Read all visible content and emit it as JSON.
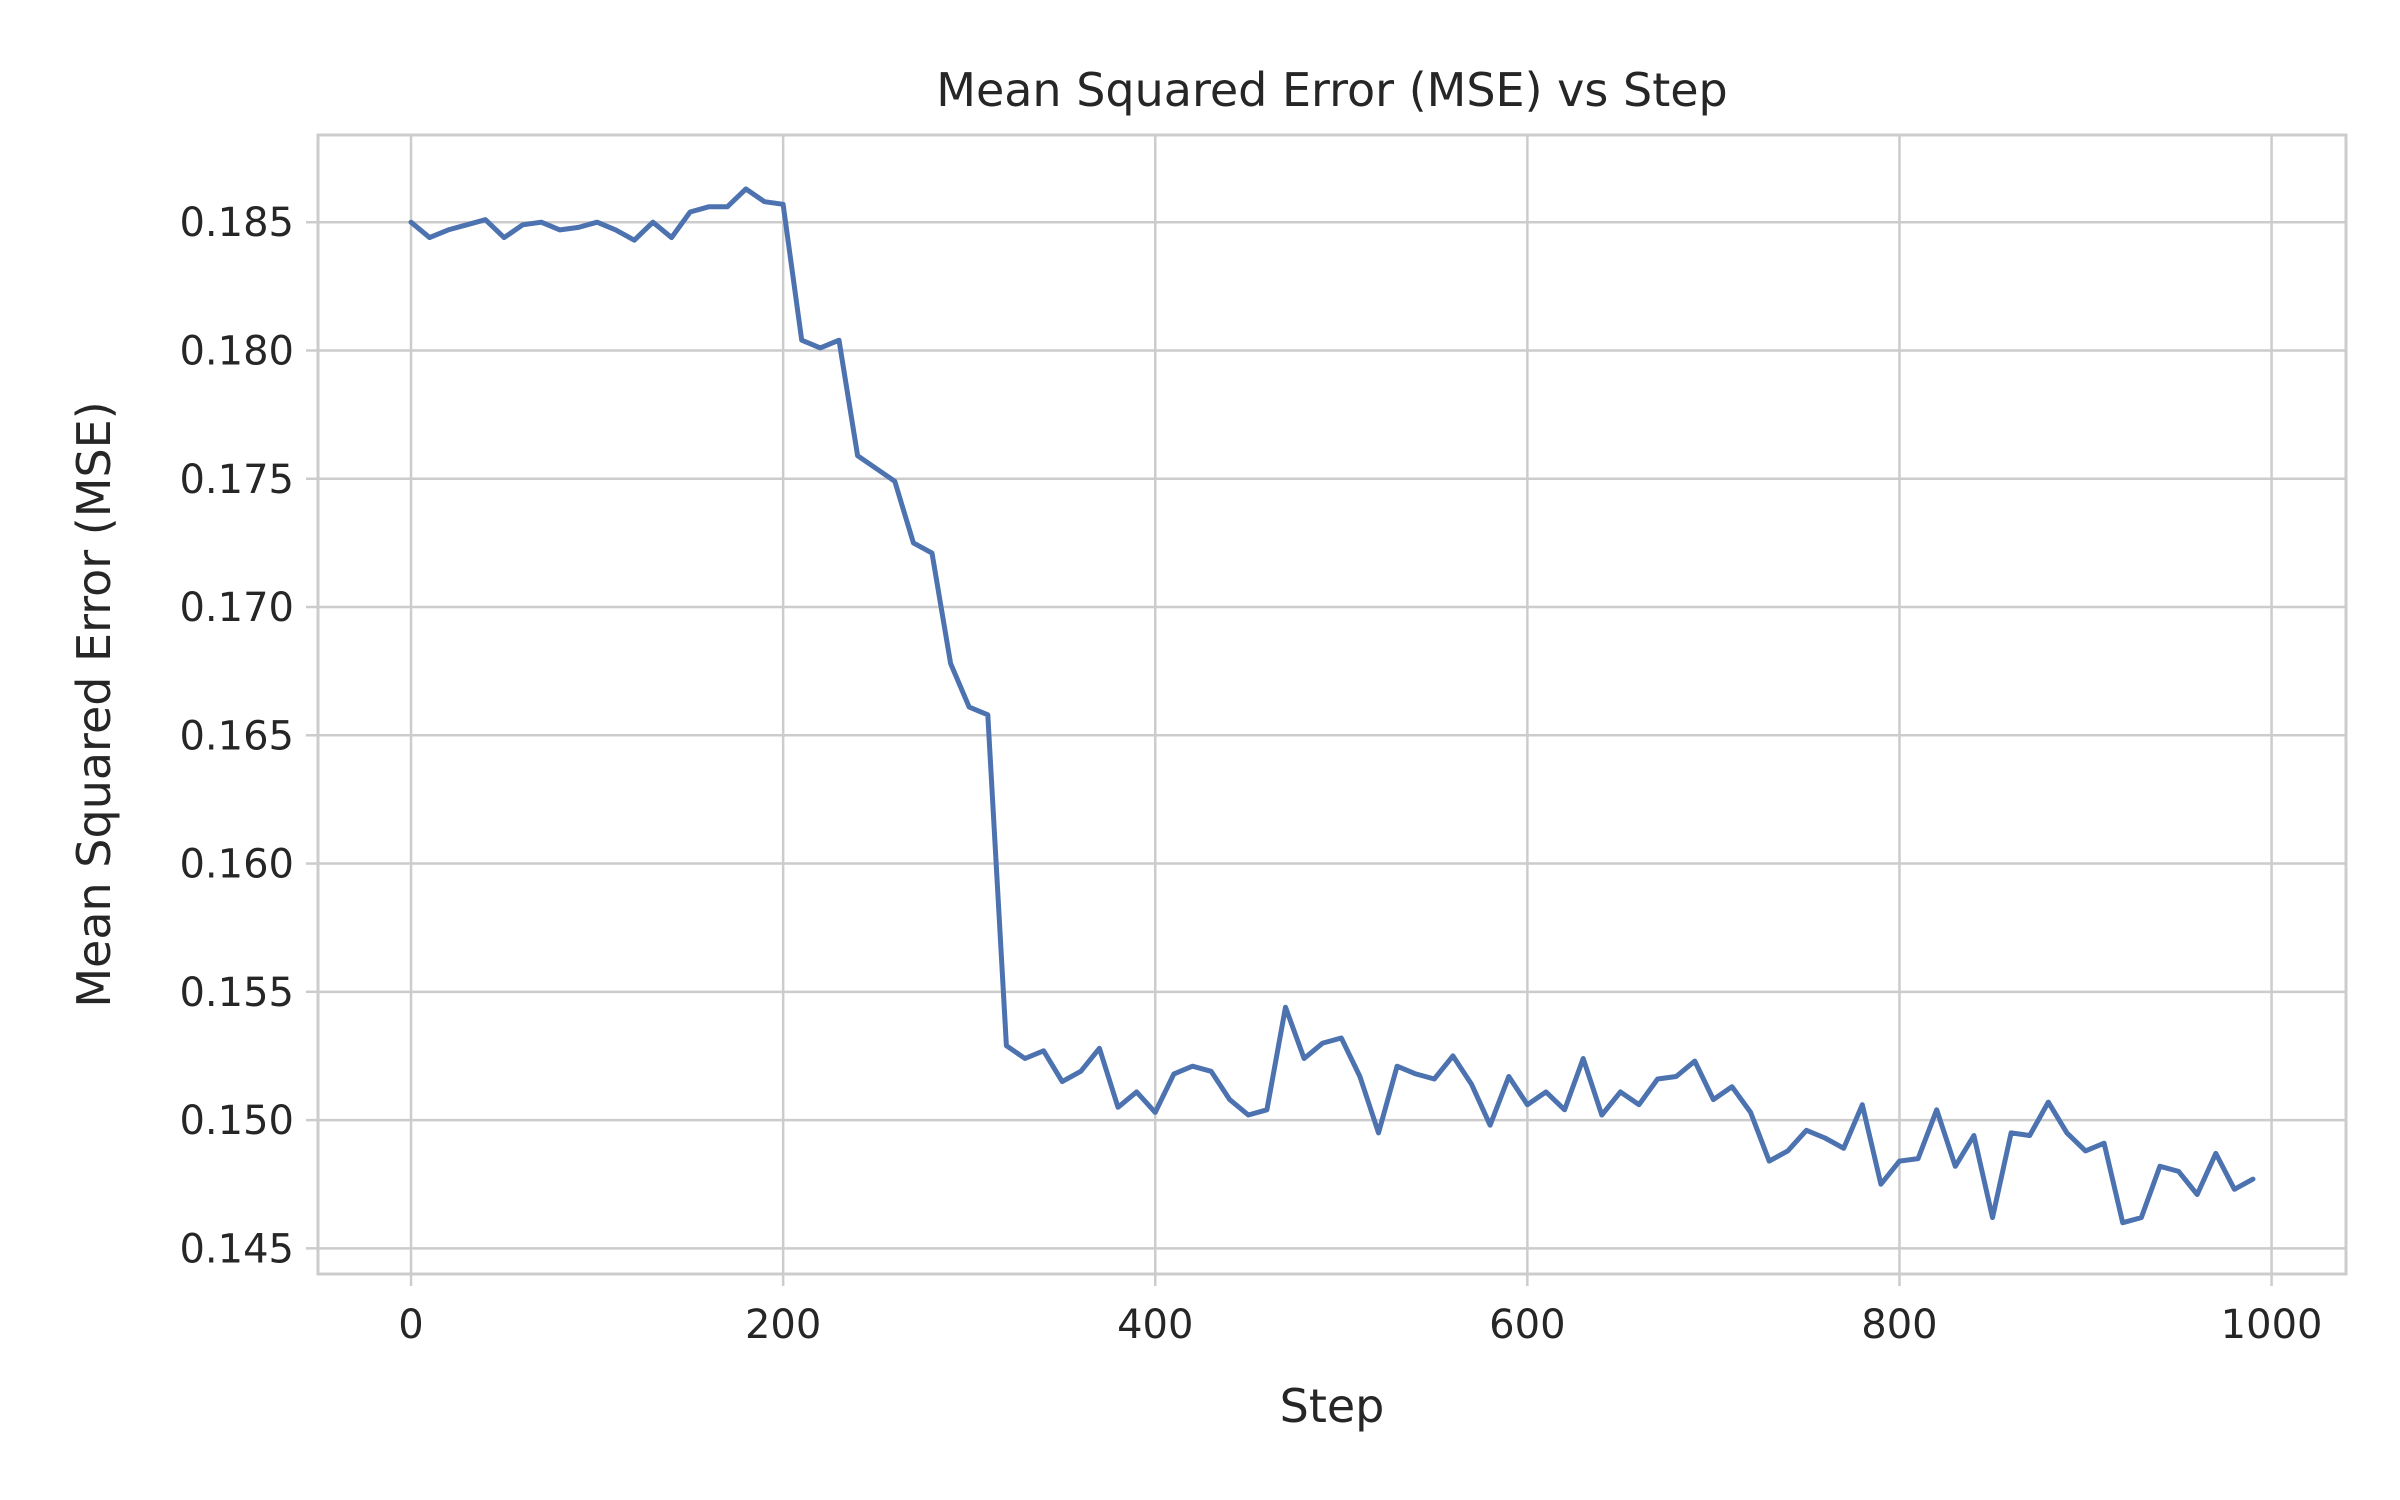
{
  "chart_data": {
    "type": "line",
    "title": "Mean Squared Error (MSE) vs Step",
    "xlabel": "Step",
    "ylabel": "Mean Squared Error (MSE)",
    "xlim": [
      -50,
      1040
    ],
    "ylim": [
      0.144,
      0.1884
    ],
    "xticks": [
      0,
      200,
      400,
      600,
      800,
      1000
    ],
    "xtick_labels": [
      "0",
      "200",
      "400",
      "600",
      "800",
      "1000"
    ],
    "yticks": [
      0.145,
      0.15,
      0.155,
      0.16,
      0.165,
      0.17,
      0.175,
      0.18,
      0.185
    ],
    "ytick_labels": [
      "0.145",
      "0.150",
      "0.155",
      "0.160",
      "0.165",
      "0.170",
      "0.175",
      "0.180",
      "0.185"
    ],
    "grid": true,
    "series_color": "#4c72b0",
    "x": [
      0,
      10,
      20,
      30,
      40,
      50,
      60,
      70,
      80,
      90,
      100,
      110,
      120,
      130,
      140,
      150,
      160,
      170,
      180,
      190,
      200,
      210,
      220,
      230,
      240,
      250,
      260,
      270,
      280,
      290,
      300,
      310,
      320,
      330,
      340,
      350,
      360,
      370,
      380,
      390,
      400,
      410,
      420,
      430,
      440,
      450,
      460,
      470,
      480,
      490,
      500,
      510,
      520,
      530,
      540,
      550,
      560,
      570,
      580,
      590,
      600,
      610,
      620,
      630,
      640,
      650,
      660,
      670,
      680,
      690,
      700,
      710,
      720,
      730,
      740,
      750,
      760,
      770,
      780,
      790,
      800,
      810,
      820,
      830,
      840,
      850,
      860,
      870,
      880,
      890,
      900,
      910,
      920,
      930,
      940,
      950,
      960,
      970,
      980,
      990
    ],
    "y": [
      0.185,
      0.1844,
      0.1847,
      0.1849,
      0.1851,
      0.1844,
      0.1849,
      0.185,
      0.1847,
      0.1848,
      0.185,
      0.1847,
      0.1843,
      0.185,
      0.1844,
      0.1854,
      0.1856,
      0.1856,
      0.1863,
      0.1858,
      0.1857,
      0.1804,
      0.1801,
      0.1804,
      0.1759,
      0.1754,
      0.1749,
      0.1725,
      0.1721,
      0.1678,
      0.1661,
      0.1658,
      0.1529,
      0.1524,
      0.1527,
      0.1515,
      0.1519,
      0.1528,
      0.1505,
      0.1511,
      0.1503,
      0.1518,
      0.1521,
      0.1519,
      0.1508,
      0.1502,
      0.1504,
      0.1544,
      0.1524,
      0.153,
      0.1532,
      0.1517,
      0.1495,
      0.1521,
      0.1518,
      0.1516,
      0.1525,
      0.1514,
      0.1498,
      0.1517,
      0.1506,
      0.1511,
      0.1504,
      0.1524,
      0.1502,
      0.1511,
      0.1506,
      0.1516,
      0.1517,
      0.1523,
      0.1508,
      0.1513,
      0.1503,
      0.1484,
      0.1488,
      0.1496,
      0.1493,
      0.1489,
      0.1506,
      0.1475,
      0.1484,
      0.1485,
      0.1504,
      0.1482,
      0.1494,
      0.1462,
      0.1495,
      0.1494,
      0.1507,
      0.1495,
      0.1488,
      0.1491,
      0.146,
      0.1462,
      0.1482,
      0.148,
      0.1471,
      0.1487,
      0.1473,
      0.1477
    ]
  }
}
